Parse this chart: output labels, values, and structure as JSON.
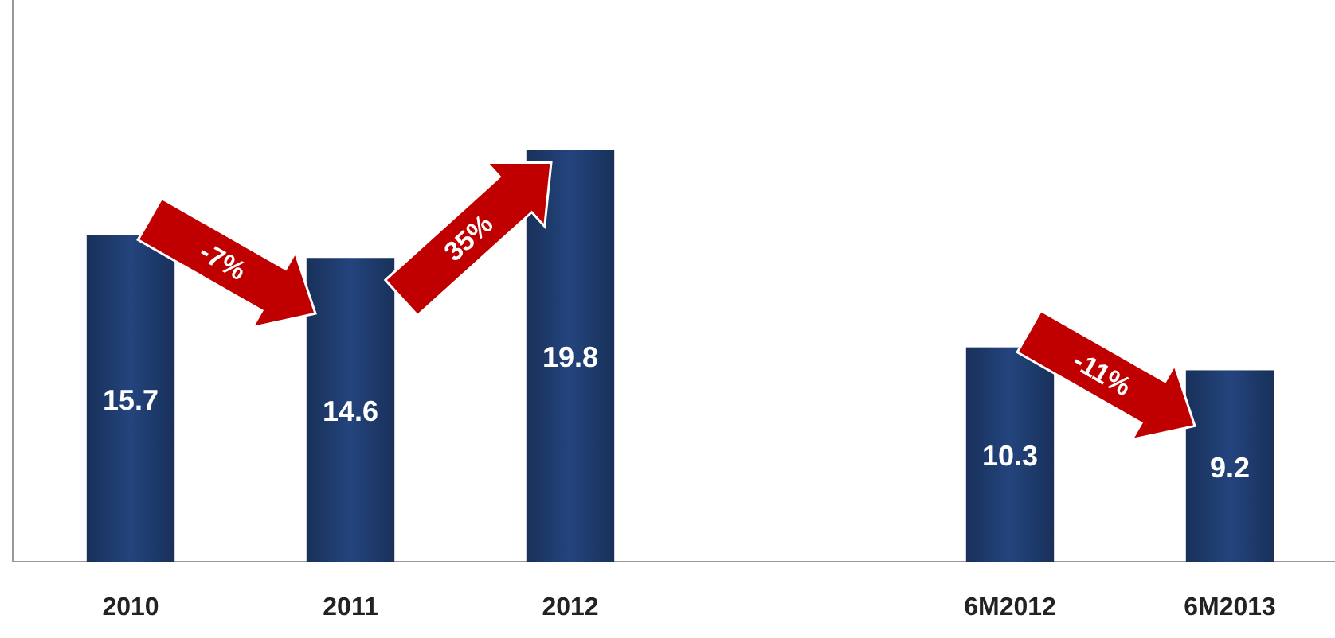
{
  "chart_data": {
    "type": "bar",
    "categories": [
      "2010",
      "2011",
      "2012",
      null,
      "6M2012",
      "6M2013"
    ],
    "values": [
      15.7,
      14.6,
      19.8,
      null,
      10.3,
      9.2
    ],
    "color": "#1f3d70",
    "data_labels": true,
    "ylim": [
      0,
      27
    ],
    "tick_labels": "x",
    "annotations": [
      "-7%",
      "35%",
      "-11%"
    ]
  }
}
